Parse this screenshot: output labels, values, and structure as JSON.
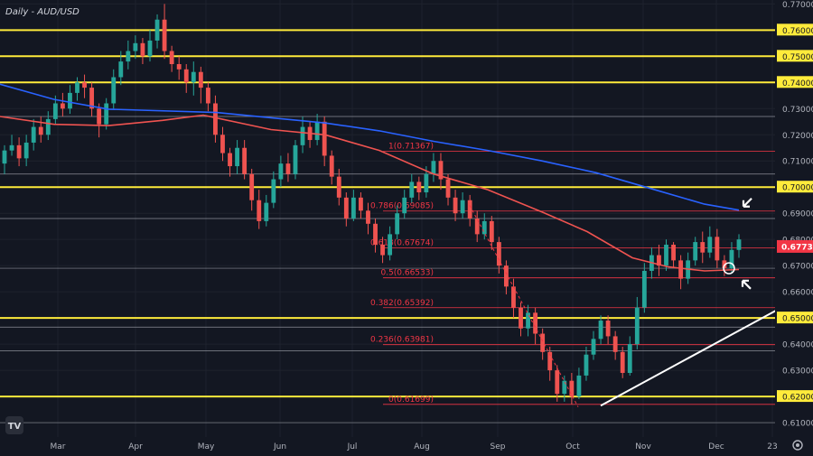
{
  "chart_data": {
    "type": "candlestick",
    "title": "Daily - AUD/USD",
    "ylim": [
      0.6045,
      0.7715
    ],
    "y_ticks": [
      "0.61000",
      "0.62000",
      "0.63000",
      "0.64000",
      "0.65000",
      "0.66000",
      "0.67000",
      "0.68000",
      "0.69000",
      "0.70000",
      "0.71000",
      "0.72000",
      "0.73000",
      "0.74000",
      "0.75000",
      "0.76000",
      "0.77000"
    ],
    "x_labels": [
      "Mar",
      "Apr",
      "May",
      "Jun",
      "Jul",
      "Aug",
      "Sep",
      "Oct",
      "Nov",
      "Dec",
      "23"
    ],
    "yellow_levels": [
      "0.76000",
      "0.75000",
      "0.74000",
      "0.70000",
      "0.65000",
      "0.62000"
    ],
    "horizontal_levels": [
      0.727,
      0.705,
      0.688,
      0.669,
      0.6465,
      0.6375,
      0.61
    ],
    "current_price": "0.67733",
    "fib_levels": [
      {
        "label": "1(0.71367)",
        "value": 0.71367
      },
      {
        "label": "0.786(0.69085)",
        "value": 0.69085
      },
      {
        "label": "0.618(0.67674)",
        "value": 0.67674
      },
      {
        "label": "0.5(0.66533)",
        "value": 0.66533
      },
      {
        "label": "0.382(0.65392)",
        "value": 0.65392
      },
      {
        "label": "0.236(0.63981)",
        "value": 0.63981
      },
      {
        "label": "0(0.61699)",
        "value": 0.61699
      }
    ],
    "ma_200": [
      [
        0,
        0.7393
      ],
      [
        60,
        0.7335
      ],
      [
        120,
        0.7298
      ],
      [
        240,
        0.7285
      ],
      [
        300,
        0.7265
      ],
      [
        360,
        0.7245
      ],
      [
        420,
        0.7215
      ],
      [
        480,
        0.7175
      ],
      [
        540,
        0.714
      ],
      [
        600,
        0.71
      ],
      [
        660,
        0.7055
      ],
      [
        720,
        0.6995
      ],
      [
        780,
        0.6935
      ],
      [
        818,
        0.6912
      ]
    ],
    "ma_100": [
      [
        0,
        0.727
      ],
      [
        60,
        0.724
      ],
      [
        120,
        0.7235
      ],
      [
        180,
        0.7255
      ],
      [
        225,
        0.7275
      ],
      [
        300,
        0.722
      ],
      [
        360,
        0.72
      ],
      [
        420,
        0.714
      ],
      [
        480,
        0.705
      ],
      [
        540,
        0.699
      ],
      [
        600,
        0.6905
      ],
      [
        650,
        0.683
      ],
      [
        700,
        0.673
      ],
      [
        740,
        0.6695
      ],
      [
        780,
        0.668
      ],
      [
        818,
        0.6685
      ]
    ],
    "trendline": [
      [
        665,
        0.6165
      ],
      [
        860,
        0.653
      ]
    ],
    "fib_diagonal": [
      [
        520,
        0.693
      ],
      [
        640,
        0.616
      ]
    ],
    "annotations": [
      "circle at 0.6690",
      "arrow at 200-day MA",
      "arrow at 0.5 fib level"
    ],
    "candles": [
      [
        0.709,
        0.714,
        0.705,
        0.716
      ],
      [
        0.714,
        0.716,
        0.712,
        0.72
      ],
      [
        0.716,
        0.711,
        0.708,
        0.719
      ],
      [
        0.711,
        0.717,
        0.708,
        0.72
      ],
      [
        0.717,
        0.723,
        0.714,
        0.726
      ],
      [
        0.723,
        0.72,
        0.717,
        0.727
      ],
      [
        0.72,
        0.726,
        0.718,
        0.729
      ],
      [
        0.726,
        0.732,
        0.724,
        0.735
      ],
      [
        0.732,
        0.73,
        0.727,
        0.736
      ],
      [
        0.73,
        0.736,
        0.728,
        0.739
      ],
      [
        0.736,
        0.74,
        0.733,
        0.742
      ],
      [
        0.74,
        0.738,
        0.734,
        0.743
      ],
      [
        0.738,
        0.73,
        0.727,
        0.74
      ],
      [
        0.73,
        0.724,
        0.719,
        0.732
      ],
      [
        0.724,
        0.732,
        0.722,
        0.734
      ],
      [
        0.732,
        0.742,
        0.73,
        0.745
      ],
      [
        0.742,
        0.748,
        0.739,
        0.752
      ],
      [
        0.748,
        0.752,
        0.745,
        0.756
      ],
      [
        0.752,
        0.755,
        0.749,
        0.758
      ],
      [
        0.755,
        0.75,
        0.747,
        0.757
      ],
      [
        0.75,
        0.756,
        0.748,
        0.76
      ],
      [
        0.756,
        0.764,
        0.753,
        0.766
      ],
      [
        0.764,
        0.752,
        0.749,
        0.77
      ],
      [
        0.752,
        0.747,
        0.744,
        0.754
      ],
      [
        0.747,
        0.745,
        0.741,
        0.75
      ],
      [
        0.745,
        0.74,
        0.736,
        0.747
      ],
      [
        0.74,
        0.744,
        0.735,
        0.748
      ],
      [
        0.744,
        0.738,
        0.732,
        0.746
      ],
      [
        0.738,
        0.732,
        0.729,
        0.74
      ],
      [
        0.732,
        0.72,
        0.717,
        0.735
      ],
      [
        0.72,
        0.713,
        0.71,
        0.723
      ],
      [
        0.713,
        0.708,
        0.704,
        0.715
      ],
      [
        0.708,
        0.715,
        0.705,
        0.718
      ],
      [
        0.715,
        0.705,
        0.703,
        0.718
      ],
      [
        0.705,
        0.695,
        0.691,
        0.707
      ],
      [
        0.695,
        0.687,
        0.684,
        0.699
      ],
      [
        0.687,
        0.694,
        0.685,
        0.697
      ],
      [
        0.694,
        0.703,
        0.692,
        0.706
      ],
      [
        0.703,
        0.709,
        0.7,
        0.712
      ],
      [
        0.709,
        0.705,
        0.702,
        0.713
      ],
      [
        0.705,
        0.716,
        0.703,
        0.718
      ],
      [
        0.716,
        0.723,
        0.713,
        0.727
      ],
      [
        0.723,
        0.718,
        0.715,
        0.725
      ],
      [
        0.718,
        0.725,
        0.716,
        0.728
      ],
      [
        0.725,
        0.712,
        0.708,
        0.727
      ],
      [
        0.712,
        0.704,
        0.701,
        0.714
      ],
      [
        0.704,
        0.696,
        0.693,
        0.707
      ],
      [
        0.696,
        0.688,
        0.685,
        0.698
      ],
      [
        0.688,
        0.696,
        0.687,
        0.699
      ],
      [
        0.696,
        0.691,
        0.688,
        0.698
      ],
      [
        0.691,
        0.686,
        0.682,
        0.694
      ],
      [
        0.686,
        0.678,
        0.675,
        0.688
      ],
      [
        0.678,
        0.674,
        0.671,
        0.681
      ],
      [
        0.674,
        0.682,
        0.672,
        0.685
      ],
      [
        0.682,
        0.69,
        0.68,
        0.693
      ],
      [
        0.69,
        0.696,
        0.688,
        0.699
      ],
      [
        0.696,
        0.702,
        0.694,
        0.705
      ],
      [
        0.702,
        0.698,
        0.695,
        0.704
      ],
      [
        0.698,
        0.705,
        0.696,
        0.708
      ],
      [
        0.705,
        0.71,
        0.702,
        0.713
      ],
      [
        0.71,
        0.703,
        0.699,
        0.713
      ],
      [
        0.703,
        0.696,
        0.693,
        0.705
      ],
      [
        0.696,
        0.69,
        0.687,
        0.699
      ],
      [
        0.69,
        0.695,
        0.688,
        0.698
      ],
      [
        0.695,
        0.688,
        0.685,
        0.697
      ],
      [
        0.688,
        0.682,
        0.679,
        0.691
      ],
      [
        0.682,
        0.687,
        0.68,
        0.69
      ],
      [
        0.687,
        0.679,
        0.676,
        0.689
      ],
      [
        0.679,
        0.67,
        0.667,
        0.681
      ],
      [
        0.67,
        0.662,
        0.659,
        0.672
      ],
      [
        0.662,
        0.654,
        0.65,
        0.665
      ],
      [
        0.654,
        0.646,
        0.643,
        0.656
      ],
      [
        0.646,
        0.652,
        0.643,
        0.655
      ],
      [
        0.652,
        0.644,
        0.64,
        0.654
      ],
      [
        0.644,
        0.637,
        0.634,
        0.646
      ],
      [
        0.637,
        0.63,
        0.626,
        0.639
      ],
      [
        0.63,
        0.621,
        0.618,
        0.632
      ],
      [
        0.621,
        0.626,
        0.618,
        0.628
      ],
      [
        0.626,
        0.62,
        0.617,
        0.629
      ],
      [
        0.62,
        0.628,
        0.619,
        0.631
      ],
      [
        0.628,
        0.636,
        0.626,
        0.639
      ],
      [
        0.636,
        0.642,
        0.634,
        0.645
      ],
      [
        0.642,
        0.649,
        0.64,
        0.651
      ],
      [
        0.649,
        0.643,
        0.64,
        0.651
      ],
      [
        0.643,
        0.637,
        0.634,
        0.645
      ],
      [
        0.637,
        0.629,
        0.627,
        0.639
      ],
      [
        0.629,
        0.64,
        0.628,
        0.643
      ],
      [
        0.64,
        0.654,
        0.638,
        0.658
      ],
      [
        0.654,
        0.668,
        0.652,
        0.671
      ],
      [
        0.668,
        0.674,
        0.665,
        0.677
      ],
      [
        0.674,
        0.67,
        0.666,
        0.678
      ],
      [
        0.67,
        0.678,
        0.668,
        0.68
      ],
      [
        0.678,
        0.672,
        0.669,
        0.679
      ],
      [
        0.672,
        0.665,
        0.661,
        0.674
      ],
      [
        0.665,
        0.672,
        0.663,
        0.675
      ],
      [
        0.672,
        0.679,
        0.67,
        0.681
      ],
      [
        0.679,
        0.675,
        0.671,
        0.683
      ],
      [
        0.675,
        0.681,
        0.673,
        0.685
      ],
      [
        0.681,
        0.672,
        0.669,
        0.684
      ],
      [
        0.672,
        0.669,
        0.666,
        0.674
      ],
      [
        0.669,
        0.676,
        0.667,
        0.679
      ],
      [
        0.676,
        0.68,
        0.673,
        0.682
      ]
    ]
  }
}
